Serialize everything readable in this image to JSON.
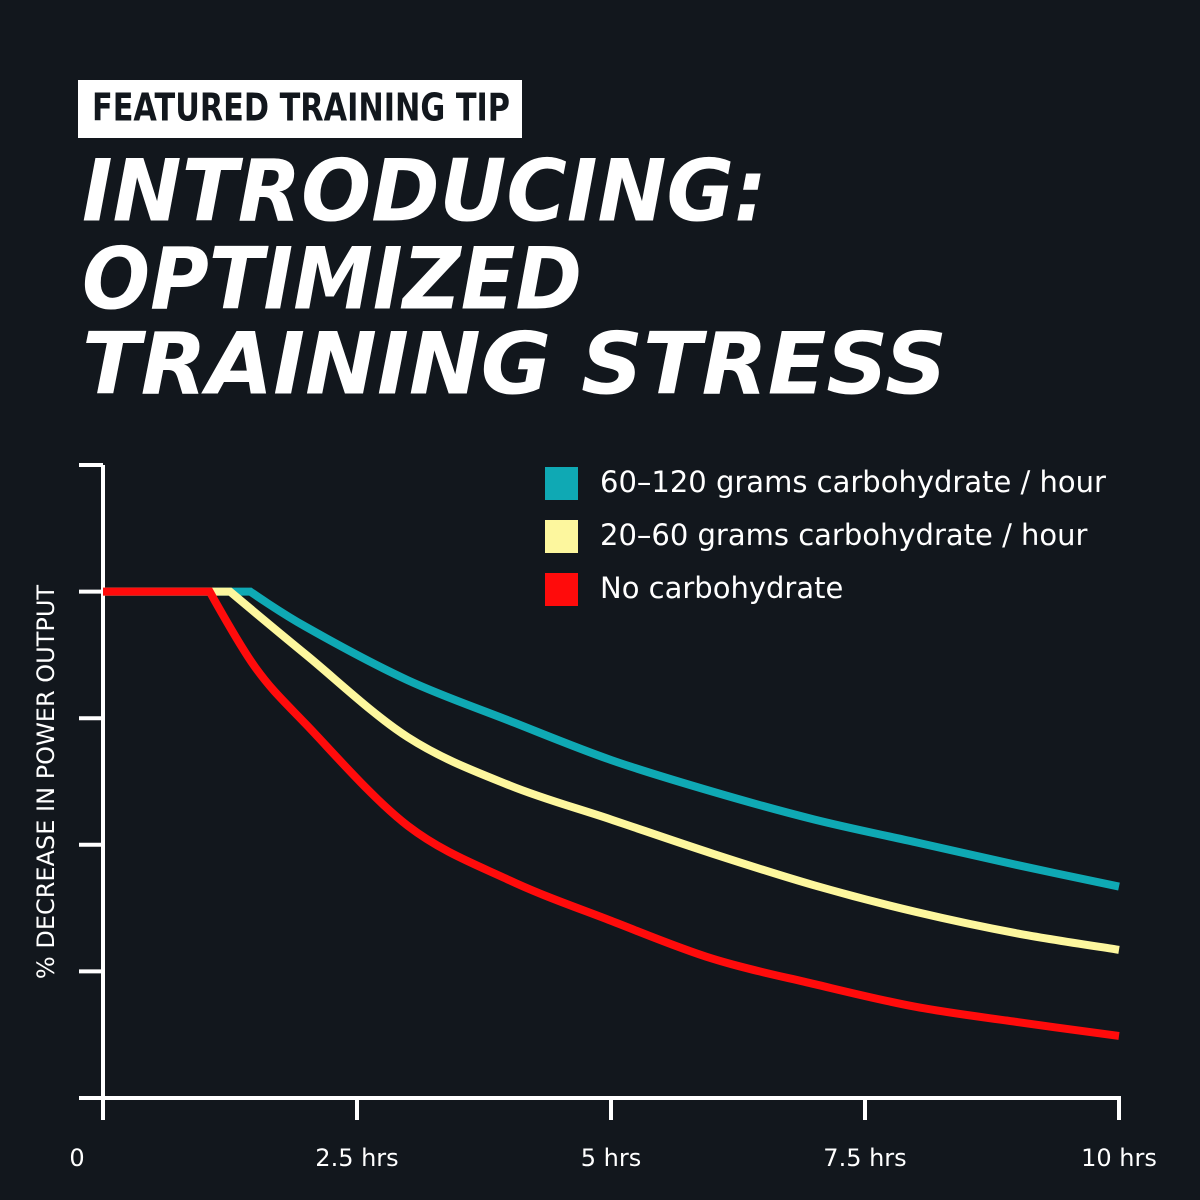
{
  "chart_data": {
    "type": "line",
    "kicker": "FEATURED TRAINING TIP",
    "title": [
      "INTRODUCING:",
      "OPTIMIZED",
      "TRAINING STRESS"
    ],
    "y_label": "% DECREASE IN POWER OUTPUT",
    "xlim": [
      0,
      10
    ],
    "xticks": [
      0,
      {
        "value": 2.5,
        "label": "2.5 hrs"
      },
      {
        "value": 5,
        "label": "5 hrs"
      },
      {
        "value": 7.5,
        "label": "7.5 hrs"
      },
      {
        "value": 10,
        "label": "10 hrs"
      }
    ],
    "ylim": [
      0,
      5
    ],
    "yticks": [
      0,
      1,
      2,
      3,
      4,
      5
    ],
    "series": [
      {
        "name": "60–120 grams carbohydrate / hour",
        "color": "#0fa9b4",
        "x": [
          0,
          1.45,
          2,
          3,
          4,
          5,
          6,
          7,
          8,
          9,
          10
        ],
        "values": [
          4,
          4,
          3.72,
          3.3,
          2.98,
          2.67,
          2.42,
          2.2,
          2.02,
          1.84,
          1.67
        ]
      },
      {
        "name": "20–60 grams carbohydrate / hour",
        "color": "#fdf79e",
        "x": [
          0,
          1.25,
          2,
          3,
          4,
          5,
          6,
          7,
          8,
          9,
          10
        ],
        "values": [
          4,
          4,
          3.5,
          2.85,
          2.47,
          2.2,
          1.93,
          1.68,
          1.47,
          1.3,
          1.17
        ]
      },
      {
        "name": "No carbohydrate",
        "color": "#ff0b0b",
        "x": [
          0,
          1.05,
          1.5,
          2,
          3,
          4,
          5,
          6,
          7,
          8,
          9,
          10
        ],
        "values": [
          4,
          4,
          3.4,
          2.95,
          2.15,
          1.72,
          1.4,
          1.1,
          0.9,
          0.72,
          0.6,
          0.49
        ]
      }
    ]
  }
}
